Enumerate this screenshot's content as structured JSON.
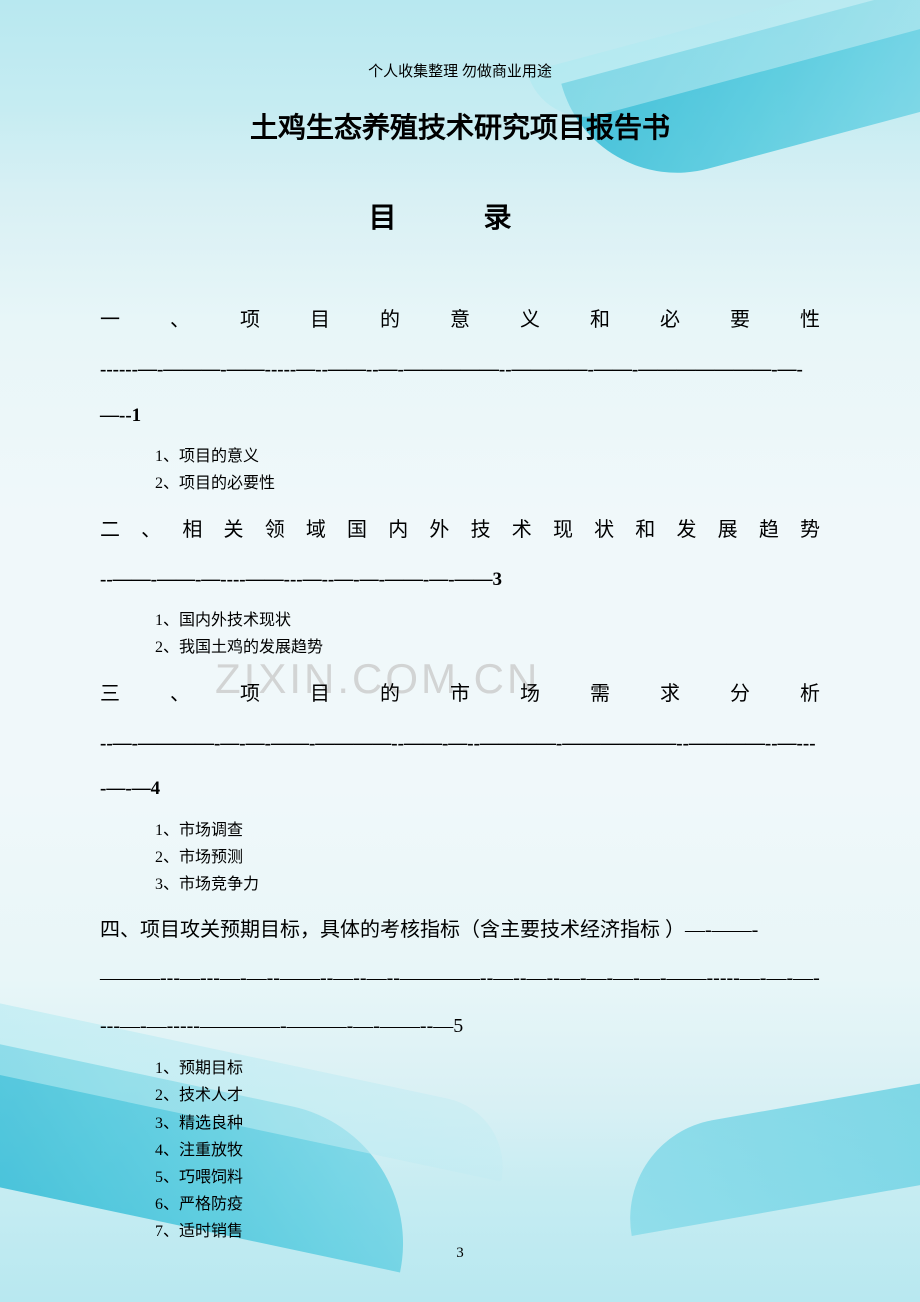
{
  "header_note": "个人收集整理 勿做商业用途",
  "title": "土鸡生态养殖技术研究项目报告书",
  "toc_heading": "目 录",
  "watermark": "ZIXIN.COM.CN",
  "page_number": "3",
  "sections": {
    "s1": {
      "heading": "一 、 项 目 的 意 义 和 必 要 性",
      "dashes": "------—-———-——-----—--——--—-—————--————-——-———————-—-—--1",
      "items": {
        "i1": "1、项目的意义",
        "i2": "2、项目的必要性"
      }
    },
    "s2": {
      "heading": "二 、 相 关 领 域 国 内 外 技 术 现 状 和 发 展 趋 势",
      "dashes": "--——-——-—----——---—--—-—-——-—-——3",
      "items": {
        "i1": "1、国内外技术现状",
        "i2": "2、我国土鸡的发展趋势"
      }
    },
    "s3": {
      "heading": "三 、 项 目 的 市 场 需 求 分 析",
      "dashes": "--—-————-—-—-——-————--——-—--————-——————--————--—----—-—4",
      "items": {
        "i1": "1、市场调查",
        "i2": "2、市场预测",
        "i3": "3、市场竞争力"
      }
    },
    "s4": {
      "heading": "四、项目攻关预期目标，具体的考核指标（含主要技术经济指标 ）—-——-———---—---—-—--——--—--—--————--—--—--—-—-—-—-——-----—-—-—----—-—-----————-———-—-——--—5",
      "items": {
        "i1": "1、预期目标",
        "i2": "2、技术人才",
        "i3": "3、精选良种",
        "i4": "4、注重放牧",
        "i5": "5、巧喂饲料",
        "i6": "6、严格防疫",
        "i7": "7、适时销售"
      }
    }
  },
  "colors": {
    "bg_light": "#e8f6f8",
    "bg_medium": "#c5ecf2",
    "wave_dark": "#2bb8d4",
    "wave_light": "#7dd8e8",
    "text": "#000000",
    "watermark": "#c8c8c8"
  }
}
